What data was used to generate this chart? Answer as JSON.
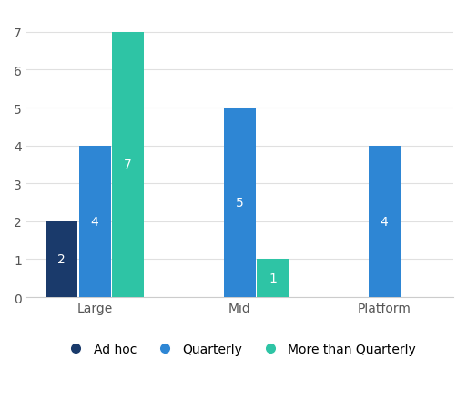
{
  "categories": [
    "Large",
    "Mid",
    "Platform"
  ],
  "series": {
    "Ad hoc": [
      2,
      0,
      0
    ],
    "Quarterly": [
      4,
      5,
      4
    ],
    "More than Quarterly": [
      7,
      1,
      0
    ]
  },
  "colors": {
    "Ad hoc": "#1a3a6b",
    "Quarterly": "#2e86d4",
    "More than Quarterly": "#2ec4a5"
  },
  "ylim": [
    0,
    7.5
  ],
  "yticks": [
    0,
    1,
    2,
    3,
    4,
    5,
    6,
    7
  ],
  "bar_width": 0.22,
  "label_fontsize": 10,
  "tick_fontsize": 10,
  "legend_fontsize": 10,
  "background_color": "#ffffff",
  "bar_label_color": "#ffffff"
}
